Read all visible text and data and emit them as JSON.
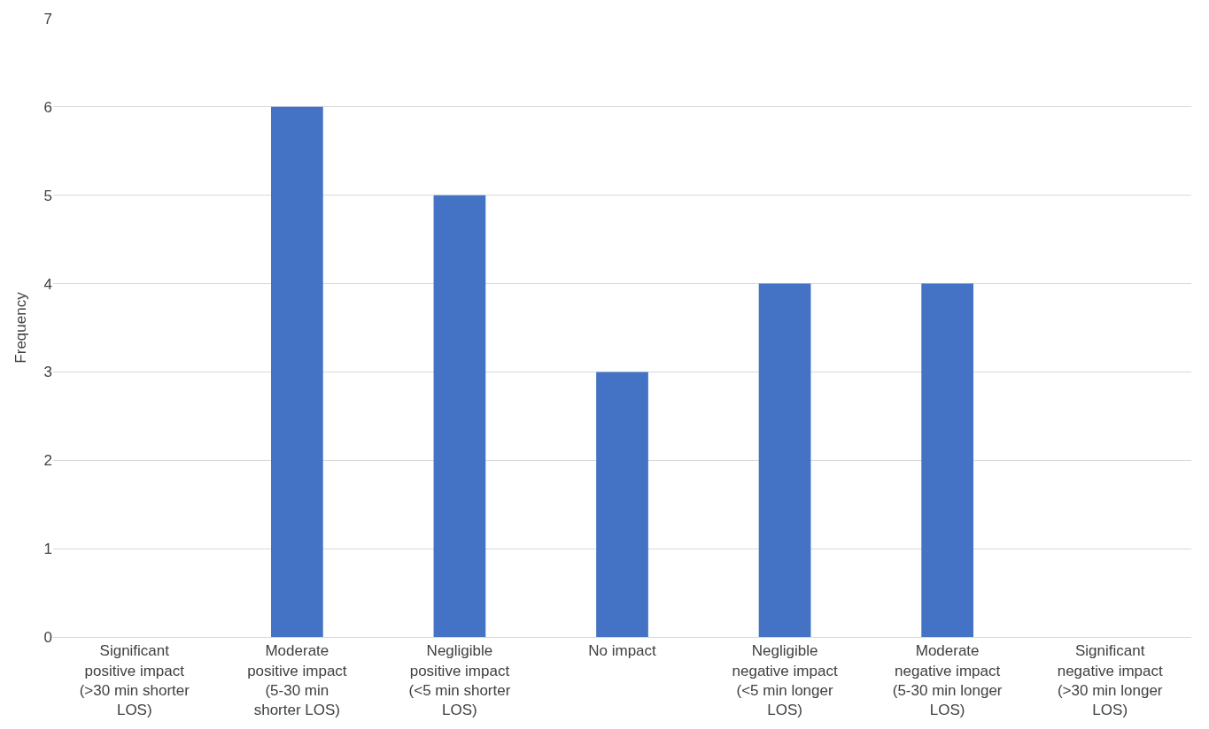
{
  "chart_data": {
    "type": "bar",
    "ylabel": "Frequency",
    "categories": [
      "Significant positive impact (>30 min shorter LOS)",
      "Moderate positive impact (5-30 min shorter LOS)",
      "Negligible positive impact (<5 min shorter LOS)",
      "No impact",
      "Negligible negative impact (<5 min longer LOS)",
      "Moderate negative impact (5-30 min longer LOS)",
      "Significant negative impact (>30 min longer LOS)"
    ],
    "values": [
      0,
      6,
      5,
      3,
      4,
      4,
      0
    ],
    "color": "#4472c4",
    "ylim": [
      0,
      7
    ],
    "yticks": [
      0,
      1,
      2,
      3,
      4,
      5,
      6,
      7
    ],
    "grid": "y"
  }
}
